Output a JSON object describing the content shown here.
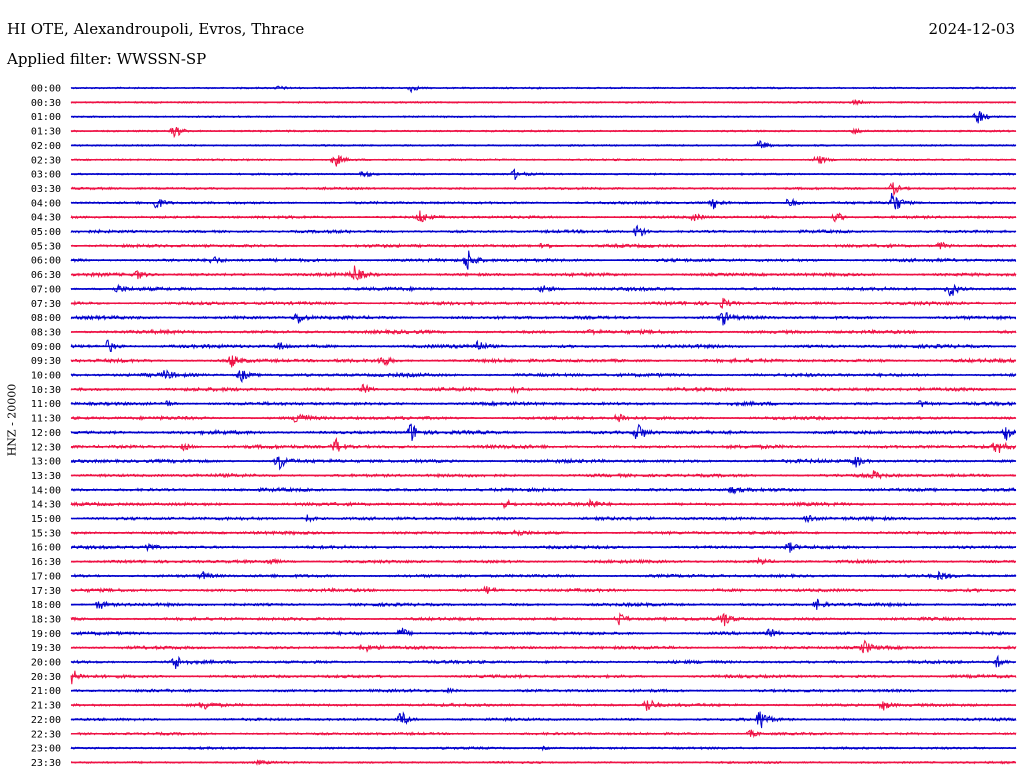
{
  "header": {
    "station": "HI OTE, Alexandroupoli, Evros, Thrace",
    "date": "2024-12-03",
    "filter": "Applied filter: WWSSN-SP"
  },
  "chart_data": {
    "type": "line",
    "title": "HI OTE, Alexandroupoli, Evros, Thrace",
    "ylabel": "HNZ - 20000",
    "row_labels": [
      "00:00",
      "00:30",
      "01:00",
      "01:30",
      "02:00",
      "02:30",
      "03:00",
      "03:30",
      "04:00",
      "04:30",
      "05:00",
      "05:30",
      "06:00",
      "06:30",
      "07:00",
      "07:30",
      "08:00",
      "08:30",
      "09:00",
      "09:30",
      "10:00",
      "10:30",
      "11:00",
      "11:30",
      "12:00",
      "12:30",
      "13:00",
      "13:30",
      "14:00",
      "14:30",
      "15:00",
      "15:30",
      "16:00",
      "16:30",
      "17:00",
      "17:30",
      "18:00",
      "18:30",
      "19:00",
      "19:30",
      "20:00",
      "20:30",
      "21:00",
      "21:30",
      "22:00",
      "22:30",
      "23:00",
      "23:30"
    ],
    "trace_colors": [
      "#0000cc",
      "#ee1144"
    ],
    "noise_level": [
      0.1,
      0.1,
      0.1,
      0.12,
      0.1,
      0.15,
      0.15,
      0.25,
      0.3,
      0.35,
      0.4,
      0.45,
      0.5,
      0.5,
      0.5,
      0.5,
      0.5,
      0.55,
      0.55,
      0.55,
      0.55,
      0.55,
      0.5,
      0.5,
      0.55,
      0.55,
      0.55,
      0.5,
      0.5,
      0.5,
      0.5,
      0.45,
      0.45,
      0.45,
      0.45,
      0.45,
      0.45,
      0.45,
      0.45,
      0.45,
      0.45,
      0.45,
      0.4,
      0.4,
      0.35,
      0.3,
      0.25,
      0.2
    ],
    "events": [
      [
        [
          0.36,
          0.6
        ],
        [
          0.22,
          0.3
        ]
      ],
      [
        [
          0.83,
          0.4
        ]
      ],
      [
        [
          0.96,
          1.4
        ]
      ],
      [
        [
          0.11,
          1.2
        ],
        [
          0.83,
          0.5
        ]
      ],
      [
        [
          0.73,
          0.9
        ]
      ],
      [
        [
          0.28,
          1.2
        ],
        [
          0.79,
          1.0
        ]
      ],
      [
        [
          0.31,
          0.6
        ],
        [
          0.47,
          0.8
        ]
      ],
      [
        [
          0.87,
          1.1
        ]
      ],
      [
        [
          0.09,
          1.2
        ],
        [
          0.68,
          0.9
        ],
        [
          0.76,
          0.9
        ],
        [
          0.87,
          2.2
        ]
      ],
      [
        [
          0.37,
          1.2
        ],
        [
          0.81,
          0.9
        ],
        [
          0.66,
          0.6
        ]
      ],
      [
        [
          0.6,
          1.4
        ]
      ],
      [
        [
          0.5,
          0.7
        ],
        [
          0.92,
          0.7
        ]
      ],
      [
        [
          0.42,
          1.9
        ],
        [
          0.15,
          0.7
        ]
      ],
      [
        [
          0.3,
          1.4
        ],
        [
          0.07,
          0.8
        ]
      ],
      [
        [
          0.93,
          1.8
        ],
        [
          0.5,
          0.7
        ],
        [
          0.05,
          0.6
        ]
      ],
      [
        [
          0.69,
          0.8
        ]
      ],
      [
        [
          0.24,
          1.1
        ],
        [
          0.69,
          1.2
        ]
      ],
      [
        [
          0.55,
          0.5
        ]
      ],
      [
        [
          0.04,
          1.2
        ],
        [
          0.43,
          1.0
        ],
        [
          0.22,
          0.7
        ]
      ],
      [
        [
          0.17,
          1.1
        ],
        [
          0.33,
          1.0
        ]
      ],
      [
        [
          0.18,
          1.2
        ],
        [
          0.1,
          0.7
        ]
      ],
      [
        [
          0.31,
          0.8
        ],
        [
          0.47,
          0.7
        ]
      ],
      [
        [
          0.1,
          0.6
        ],
        [
          0.9,
          0.6
        ]
      ],
      [
        [
          0.24,
          1.5
        ],
        [
          0.58,
          0.9
        ]
      ],
      [
        [
          0.36,
          1.7
        ],
        [
          0.6,
          1.7
        ],
        [
          0.99,
          1.4
        ]
      ],
      [
        [
          0.28,
          1.4
        ],
        [
          0.98,
          1.2
        ],
        [
          0.12,
          0.6
        ]
      ],
      [
        [
          0.22,
          1.6
        ],
        [
          0.83,
          1.1
        ]
      ],
      [
        [
          0.85,
          0.7
        ]
      ],
      [
        [
          0.7,
          0.6
        ]
      ],
      [
        [
          0.46,
          0.8
        ],
        [
          0.55,
          0.8
        ]
      ],
      [
        [
          0.25,
          0.7
        ],
        [
          0.78,
          0.8
        ]
      ],
      [
        [
          0.47,
          0.6
        ]
      ],
      [
        [
          0.08,
          0.9
        ],
        [
          0.76,
          0.8
        ]
      ],
      [
        [
          0.21,
          0.6
        ],
        [
          0.73,
          0.6
        ]
      ],
      [
        [
          0.14,
          0.6
        ],
        [
          0.92,
          0.8
        ]
      ],
      [
        [
          0.44,
          0.7
        ]
      ],
      [
        [
          0.03,
          0.9
        ],
        [
          0.79,
          0.9
        ]
      ],
      [
        [
          0.58,
          1.2
        ],
        [
          0.69,
          1.5
        ]
      ],
      [
        [
          0.35,
          1.0
        ],
        [
          0.74,
          0.7
        ]
      ],
      [
        [
          0.31,
          0.8
        ],
        [
          0.84,
          1.1
        ]
      ],
      [
        [
          0.11,
          1.4
        ],
        [
          0.98,
          1.0
        ]
      ],
      [
        [
          0.0,
          1.5
        ]
      ],
      [
        [
          0.4,
          0.4
        ]
      ],
      [
        [
          0.14,
          0.8
        ],
        [
          0.61,
          1.4
        ],
        [
          0.86,
          0.8
        ]
      ],
      [
        [
          0.35,
          1.5
        ],
        [
          0.73,
          1.9
        ]
      ],
      [
        [
          0.72,
          0.6
        ]
      ],
      [
        [
          0.5,
          0.2
        ]
      ],
      [
        [
          0.2,
          0.3
        ]
      ]
    ]
  }
}
